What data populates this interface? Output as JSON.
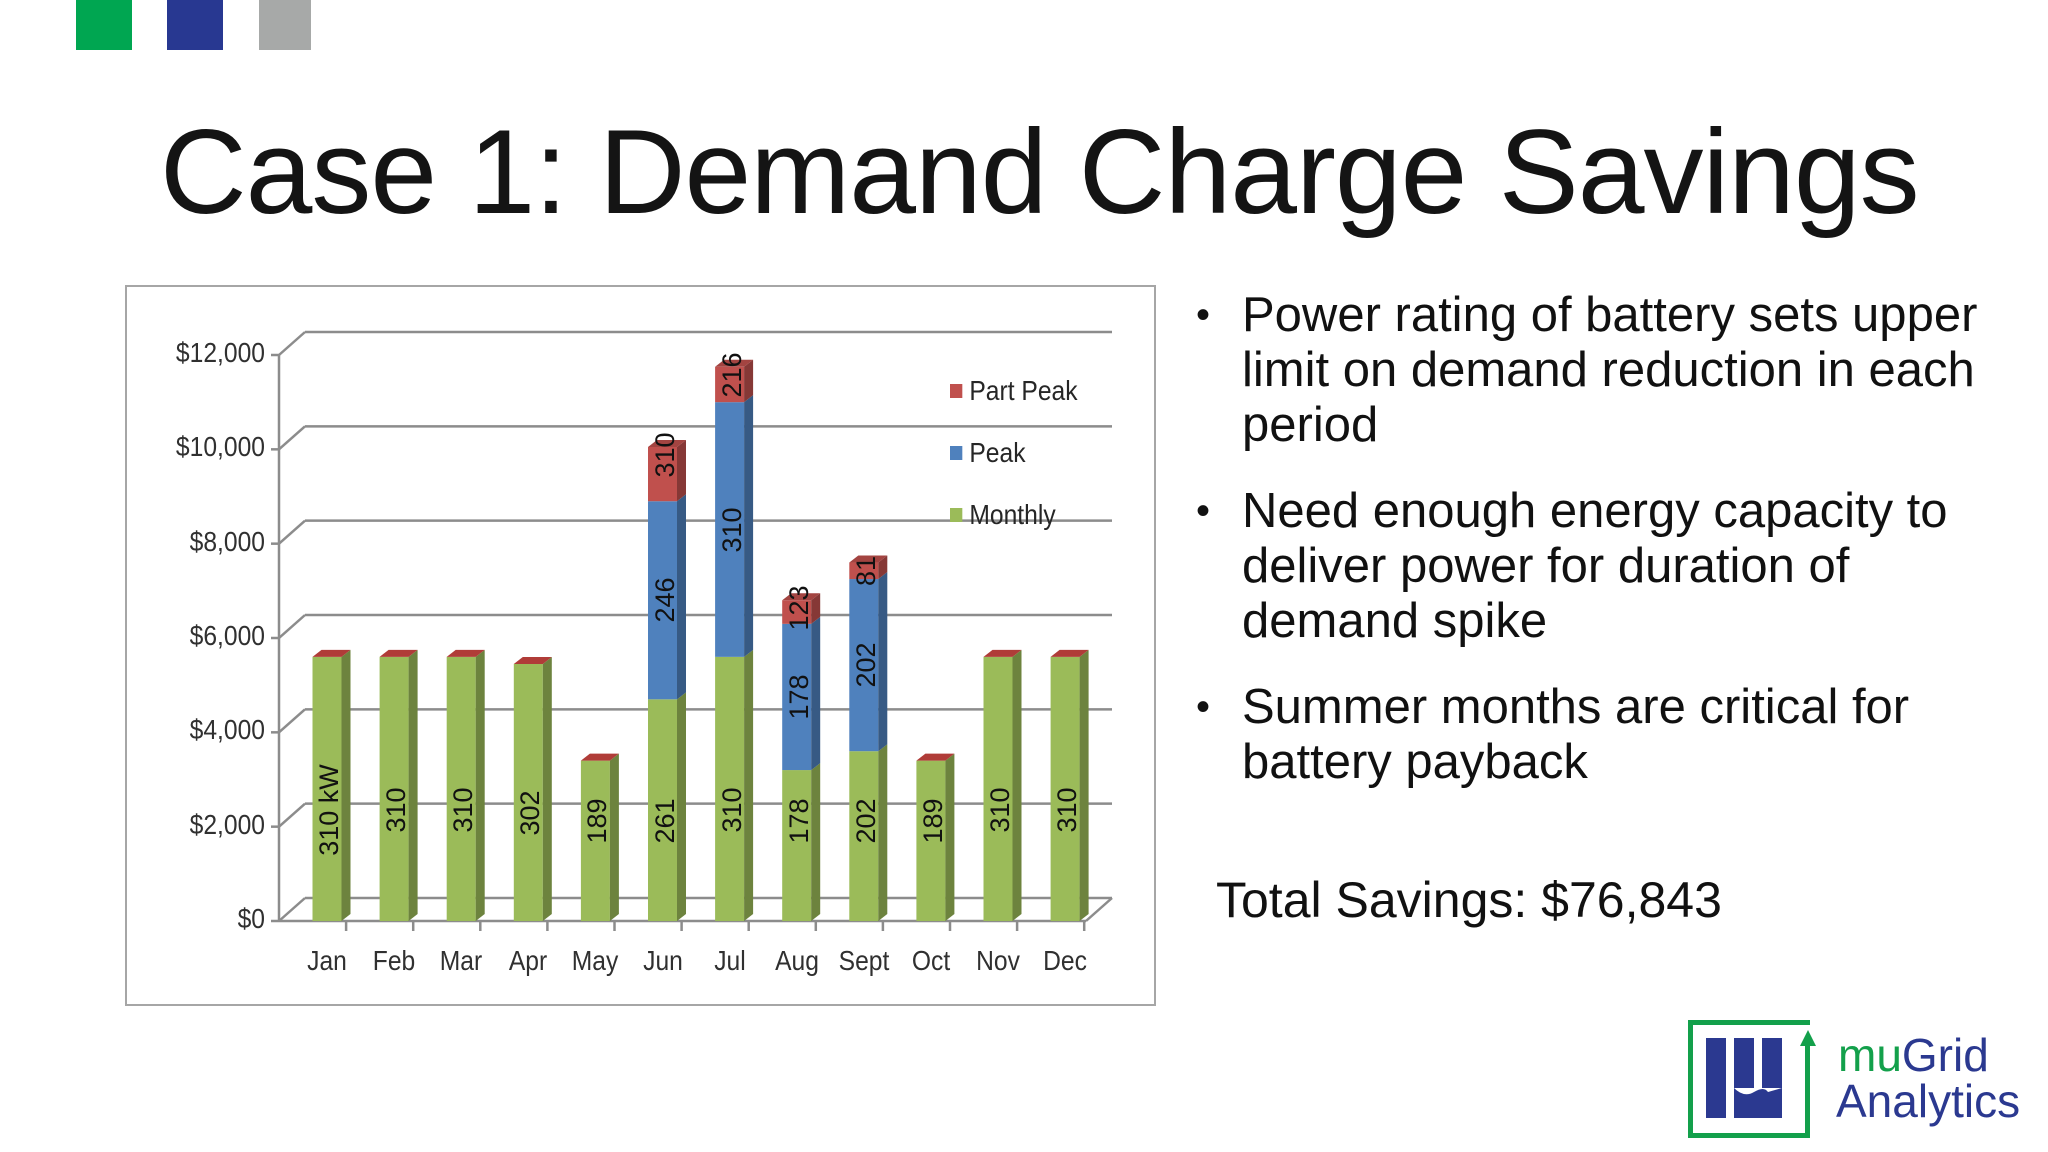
{
  "decor": {
    "squares": [
      {
        "color": "#00a651"
      },
      {
        "color": "#283891"
      },
      {
        "color": "#a7a9a8"
      }
    ]
  },
  "slide": {
    "title": "Case 1: Demand Charge Savings",
    "bullets": [
      "Power rating of battery sets upper limit on demand reduction in each period",
      "Need enough energy capacity to deliver power for duration of demand spike",
      "Summer months are critical for battery payback"
    ],
    "bullet_symbol": "•",
    "total_savings": "Total Savings: $76,843"
  },
  "logo": {
    "text_line1_part1": "mu",
    "text_line1_part2": "Grid",
    "text_line2": "Analytics",
    "green": "#13a04b",
    "blue": "#2b3990"
  },
  "chart_data": {
    "type": "bar",
    "stacked": true,
    "three_d": true,
    "title": "",
    "xlabel": "",
    "ylabel": "",
    "categories": [
      "Jan",
      "Feb",
      "Mar",
      "Apr",
      "May",
      "Jun",
      "Jul",
      "Aug",
      "Sept",
      "Oct",
      "Nov",
      "Dec"
    ],
    "y_ticks": [
      "$0",
      "$2,000",
      "$4,000",
      "$6,000",
      "$8,000",
      "$10,000",
      "$12,000"
    ],
    "ylim": [
      0,
      12000
    ],
    "grid": true,
    "legend_position": "right-top",
    "series": [
      {
        "name": "Monthly",
        "color": "#9bbb59",
        "values": [
          5600,
          5600,
          5600,
          5450,
          3400,
          4700,
          5600,
          3200,
          3600,
          3400,
          5600,
          5600
        ],
        "labels": [
          "310 kW",
          "310",
          "310",
          "302",
          "189",
          "261",
          "310",
          "178",
          "202",
          "189",
          "310",
          "310"
        ]
      },
      {
        "name": "Peak",
        "color": "#4f81bd",
        "values": [
          0,
          0,
          0,
          0,
          0,
          4200,
          5400,
          3100,
          3650,
          0,
          0,
          0
        ],
        "labels": [
          "",
          "",
          "",
          "",
          "",
          "246",
          "310",
          "178",
          "202",
          "",
          "",
          ""
        ]
      },
      {
        "name": "Part Peak",
        "color": "#c0504d",
        "values": [
          0,
          0,
          0,
          0,
          0,
          1150,
          750,
          500,
          350,
          0,
          0,
          0
        ],
        "labels": [
          "",
          "",
          "",
          "",
          "",
          "310",
          "216",
          "123",
          "81",
          "",
          "",
          ""
        ]
      }
    ],
    "legend": [
      "Part Peak",
      "Peak",
      "Monthly"
    ]
  }
}
